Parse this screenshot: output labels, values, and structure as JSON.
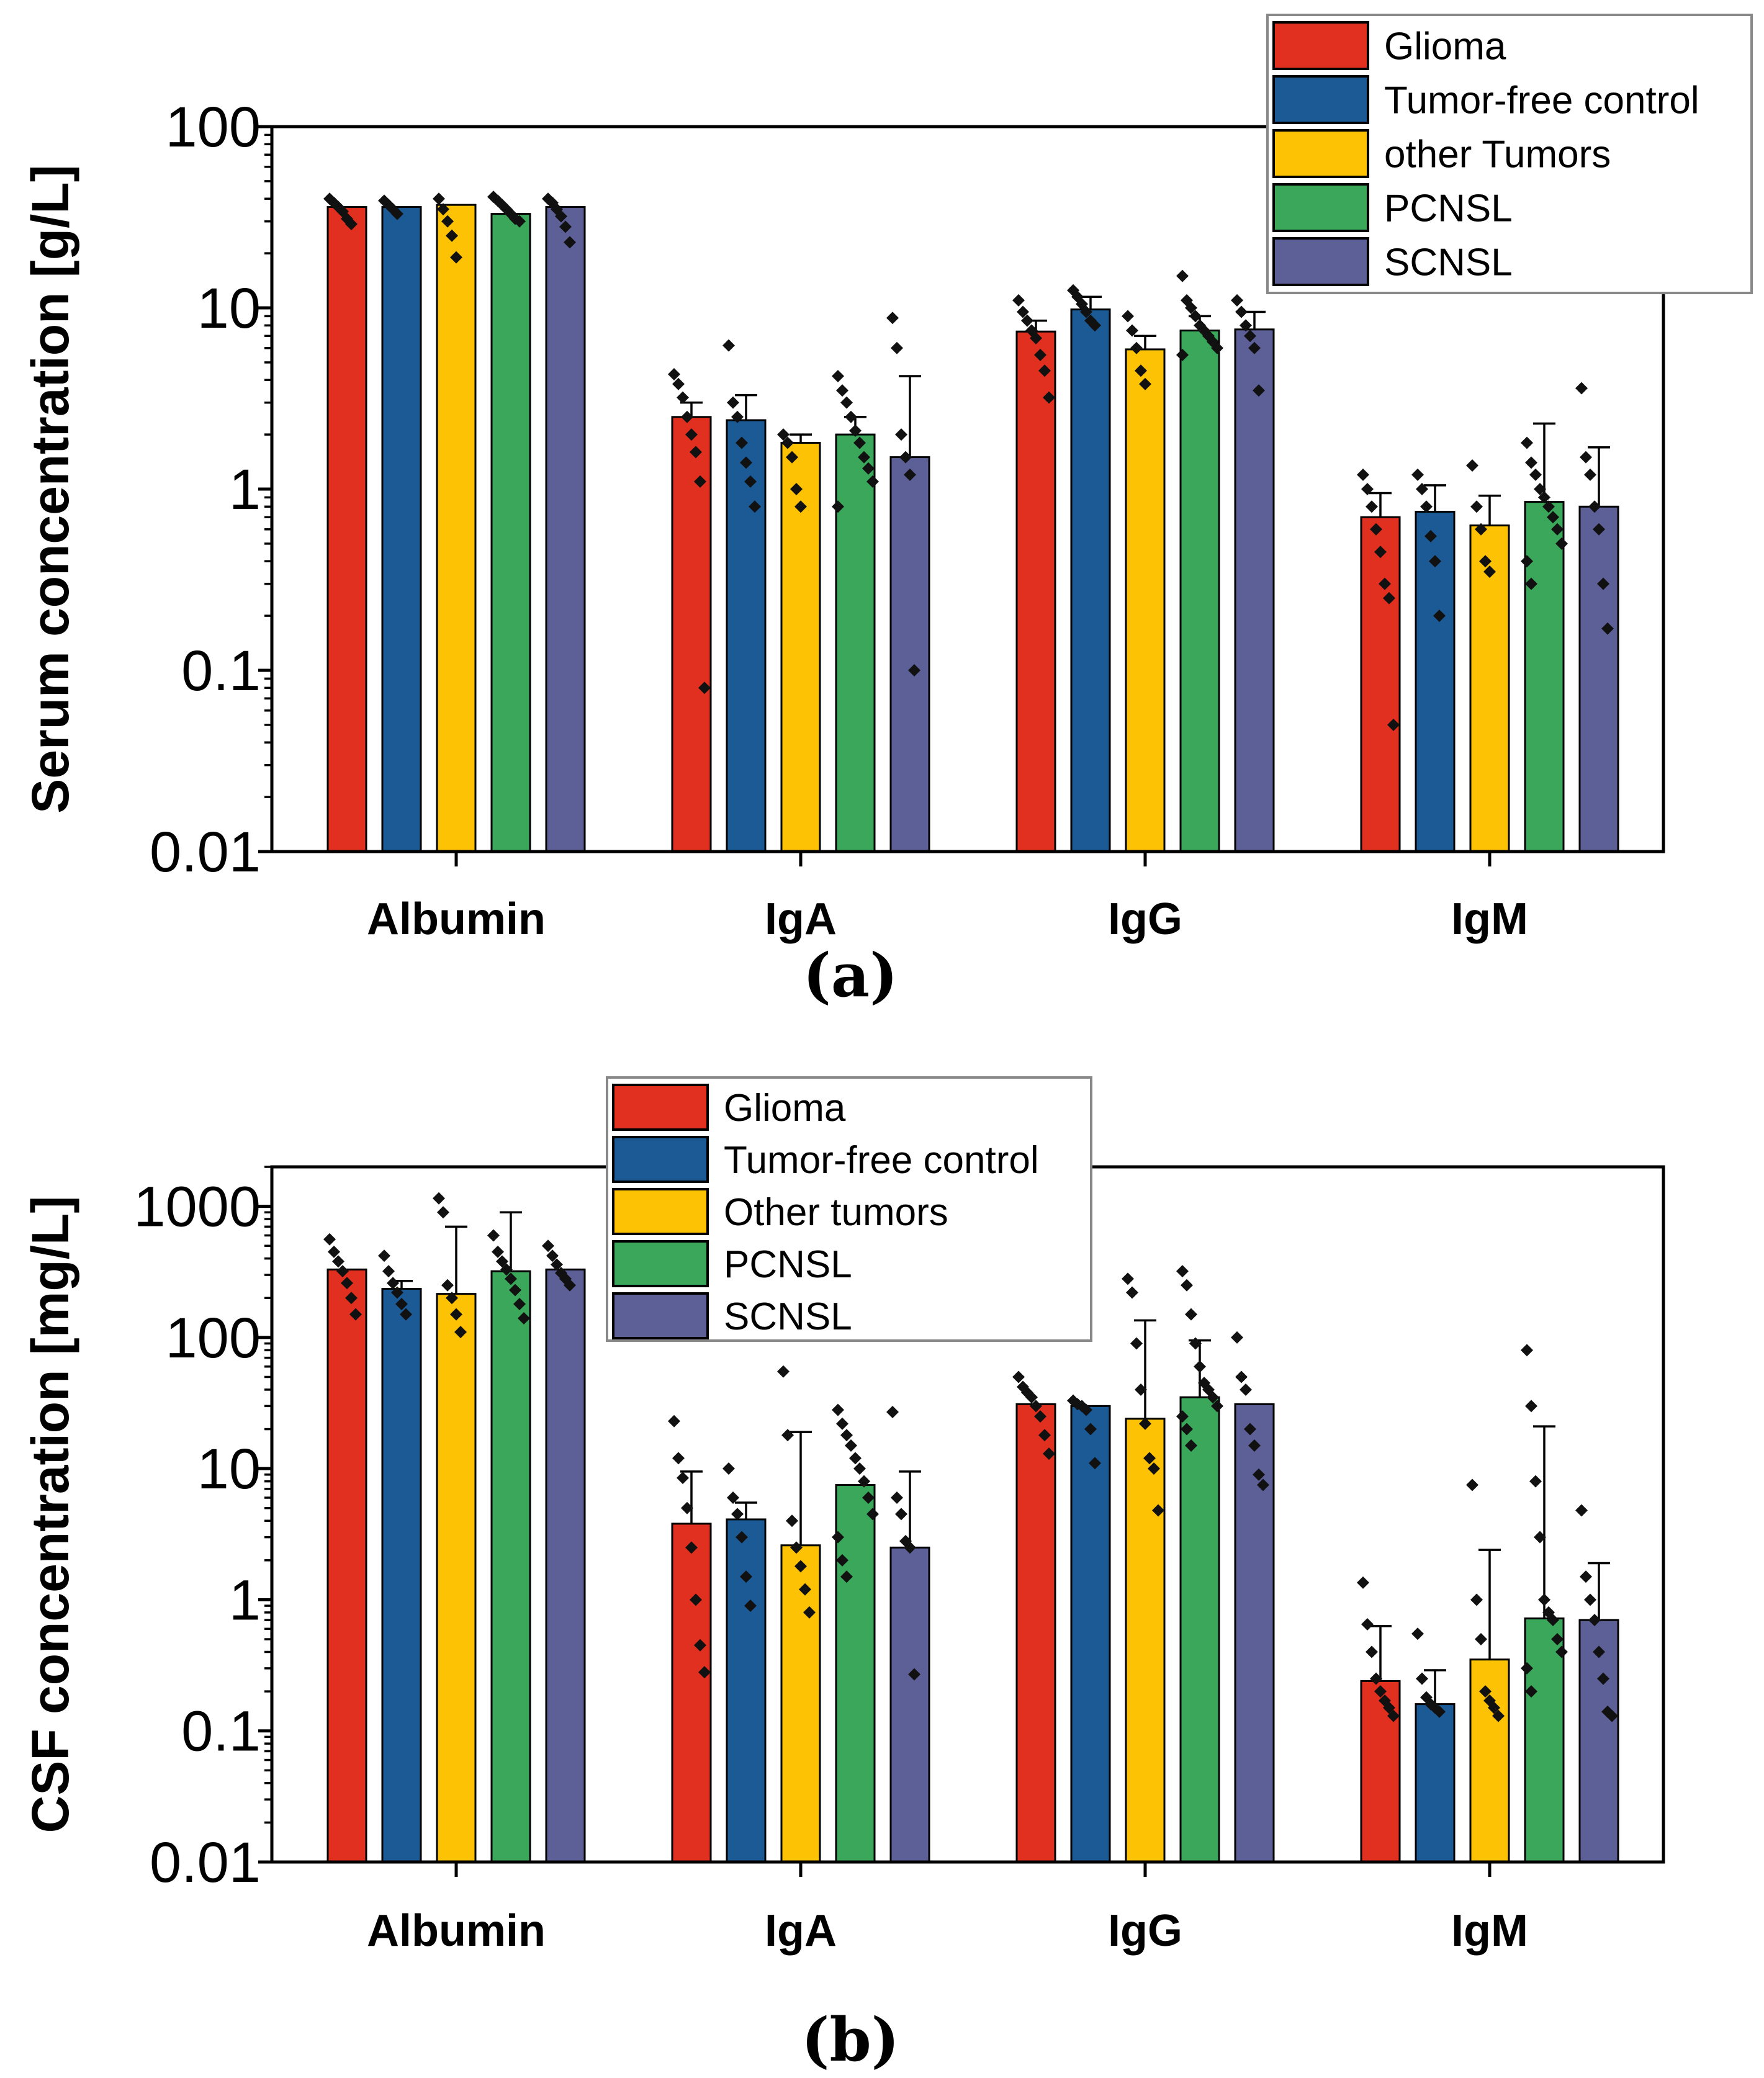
{
  "chart_data": [
    {
      "type": "bar",
      "panel_label": "(a)",
      "ylabel": "Serum concentration [g/L]",
      "yscale": "log",
      "ylim": [
        0.01,
        100
      ],
      "yticks": [
        0.01,
        0.1,
        1,
        10,
        100
      ],
      "ytick_labels": [
        "0.01",
        "0.1",
        "1",
        "10",
        "100"
      ],
      "categories": [
        "Albumin",
        "IgA",
        "IgG",
        "IgM"
      ],
      "legend_position": "top-right",
      "series": [
        {
          "name": "Glioma",
          "color": "#e1301f",
          "values": [
            36,
            2.5,
            7.4,
            0.7
          ],
          "errors": [
            null,
            3.0,
            8.5,
            0.95
          ],
          "points": [
            [
              40,
              38,
              36,
              34,
              31,
              29
            ],
            [
              4.3,
              3.8,
              3.2,
              2.5,
              2.0,
              1.6,
              1.1,
              0.08
            ],
            [
              11,
              9.5,
              8.5,
              7.5,
              6.8,
              5.5,
              4.5,
              3.2
            ],
            [
              1.2,
              1.0,
              0.8,
              0.6,
              0.45,
              0.3,
              0.25,
              0.05
            ]
          ]
        },
        {
          "name": "Tumor-free control",
          "color": "#1c5a96",
          "values": [
            36,
            2.4,
            9.8,
            0.75
          ],
          "errors": [
            null,
            3.3,
            11.5,
            1.05
          ],
          "points": [
            [
              39,
              37,
              35,
              33
            ],
            [
              6.2,
              3.0,
              2.5,
              1.8,
              1.4,
              1.1,
              0.8
            ],
            [
              12.5,
              11.5,
              10.5,
              9.5,
              8.5,
              8.0
            ],
            [
              1.2,
              1.0,
              0.8,
              0.55,
              0.4,
              0.2
            ]
          ]
        },
        {
          "name": "other Tumors",
          "color": "#fcc203",
          "values": [
            37,
            1.8,
            5.9,
            0.63
          ],
          "errors": [
            null,
            2.0,
            7.0,
            0.92
          ],
          "points": [
            [
              40,
              35,
              30,
              25,
              19
            ],
            [
              2.0,
              1.8,
              1.5,
              1.0,
              0.8
            ],
            [
              9.0,
              7.5,
              6.0,
              4.5,
              3.8
            ],
            [
              1.35,
              0.8,
              0.6,
              0.4,
              0.35
            ]
          ]
        },
        {
          "name": "PCNSL",
          "color": "#3aa75a",
          "values": [
            33,
            2.0,
            7.5,
            0.85
          ],
          "errors": [
            null,
            2.5,
            9.0,
            2.3
          ],
          "points": [
            [
              41,
              39,
              37,
              35,
              33,
              31,
              30
            ],
            [
              4.2,
              3.5,
              3.0,
              2.5,
              2.1,
              1.8,
              1.5,
              1.3,
              1.1,
              0.8
            ],
            [
              15,
              11,
              10,
              9,
              8,
              7.5,
              7,
              6.5,
              6,
              5.5
            ],
            [
              1.8,
              1.4,
              1.2,
              1.0,
              0.9,
              0.8,
              0.7,
              0.6,
              0.5,
              0.4,
              0.3
            ]
          ]
        },
        {
          "name": "SCNSL",
          "color": "#5d5f97",
          "values": [
            36,
            1.5,
            7.6,
            0.8
          ],
          "errors": [
            null,
            4.2,
            9.5,
            1.7
          ],
          "points": [
            [
              40,
              38,
              35,
              32,
              28,
              23
            ],
            [
              8.8,
              6.0,
              2.0,
              1.5,
              1.2,
              0.1
            ],
            [
              11,
              9.5,
              8,
              7,
              6,
              3.5
            ],
            [
              3.6,
              1.5,
              1.2,
              0.8,
              0.6,
              0.3,
              0.17
            ]
          ]
        }
      ]
    },
    {
      "type": "bar",
      "panel_label": "(b)",
      "ylabel": "CSF concentration [mg/L]",
      "yscale": "log",
      "ylim": [
        0.01,
        2000
      ],
      "yticks": [
        0.01,
        0.1,
        1,
        10,
        100,
        1000
      ],
      "ytick_labels": [
        "0.01",
        "0.1",
        "1",
        "10",
        "100",
        "1000"
      ],
      "categories": [
        "Albumin",
        "IgA",
        "IgG",
        "IgM"
      ],
      "legend_position": "top-center",
      "series": [
        {
          "name": "Glioma",
          "color": "#e1301f",
          "values": [
            330,
            3.8,
            31,
            0.24
          ],
          "errors": [
            null,
            9.5,
            null,
            0.63
          ],
          "points": [
            [
              560,
              450,
              380,
              320,
              260,
              200,
              150
            ],
            [
              23,
              12,
              8.5,
              5.0,
              2.5,
              1.0,
              0.45,
              0.28
            ],
            [
              50,
              42,
              38,
              35,
              30,
              25,
              18,
              13
            ],
            [
              1.35,
              0.65,
              0.4,
              0.25,
              0.2,
              0.17,
              0.15,
              0.13
            ]
          ]
        },
        {
          "name": "Tumor-free control",
          "color": "#1c5a96",
          "values": [
            235,
            4.1,
            30,
            0.16
          ],
          "errors": [
            270,
            5.5,
            null,
            0.29
          ],
          "points": [
            [
              420,
              320,
              260,
              220,
              180,
              150
            ],
            [
              10,
              6.0,
              4.5,
              3.0,
              1.5,
              0.9
            ],
            [
              33,
              31,
              30,
              28,
              20,
              11
            ],
            [
              0.55,
              0.25,
              0.18,
              0.16,
              0.15,
              0.14
            ]
          ]
        },
        {
          "name": "Other tumors",
          "color": "#fcc203",
          "values": [
            215,
            2.6,
            24,
            0.35
          ],
          "errors": [
            700,
            19,
            135,
            2.4
          ],
          "points": [
            [
              1150,
              900,
              250,
              200,
              150,
              110
            ],
            [
              55,
              18,
              4.0,
              2.5,
              1.8,
              1.2,
              0.8
            ],
            [
              280,
              220,
              90,
              40,
              22,
              12,
              10,
              4.8
            ],
            [
              7.5,
              1.0,
              0.5,
              0.2,
              0.17,
              0.15,
              0.13
            ]
          ]
        },
        {
          "name": "PCNSL",
          "color": "#3aa75a",
          "values": [
            320,
            7.5,
            35,
            0.72
          ],
          "errors": [
            900,
            null,
            95,
            21
          ],
          "points": [
            [
              600,
              450,
              380,
              330,
              280,
              230,
              180,
              140
            ],
            [
              28,
              22,
              18,
              15,
              12,
              10,
              8.0,
              6.0,
              4.5,
              3.0,
              2.0,
              1.5
            ],
            [
              320,
              250,
              150,
              90,
              60,
              45,
              40,
              35,
              30,
              25,
              20,
              15
            ],
            [
              80,
              30,
              8.0,
              3.0,
              1.0,
              0.8,
              0.7,
              0.5,
              0.4,
              0.3,
              0.2
            ]
          ]
        },
        {
          "name": "SCNSL",
          "color": "#5d5f97",
          "values": [
            330,
            2.5,
            31,
            0.7
          ],
          "errors": [
            null,
            9.5,
            null,
            1.9
          ],
          "points": [
            [
              500,
              420,
              360,
              310,
              280,
              250
            ],
            [
              27,
              6.0,
              4.5,
              2.8,
              2.5,
              0.27
            ],
            [
              100,
              50,
              40,
              20,
              15,
              9,
              7.5
            ],
            [
              4.8,
              1.5,
              1.0,
              0.7,
              0.4,
              0.25,
              0.14,
              0.13
            ]
          ]
        }
      ]
    }
  ]
}
